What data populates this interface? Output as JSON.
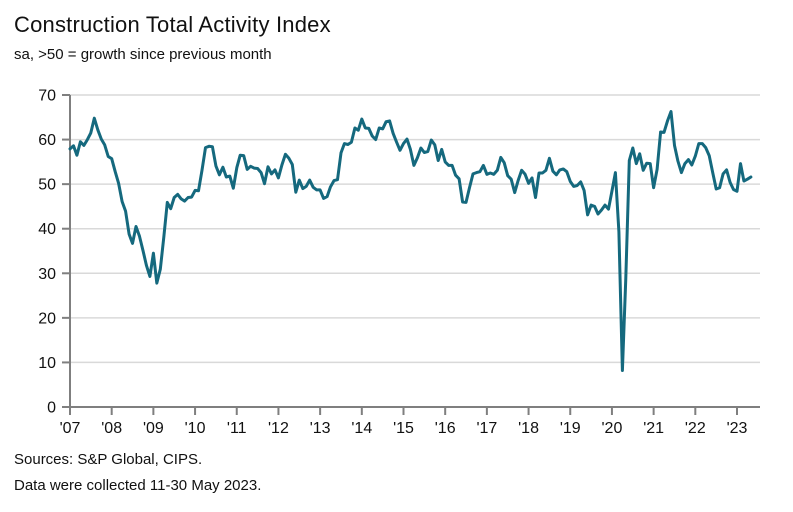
{
  "header": {
    "title": "Construction Total Activity Index",
    "subtitle": "sa, >50 = growth since previous month"
  },
  "footer": {
    "sources": "Sources: S&P Global, CIPS.",
    "note": "Data were collected 11-30 May 2023."
  },
  "colors": {
    "line": "#15697e",
    "axis": "#7f7f7f",
    "gridline": "#d9d9d9",
    "text": "#111111",
    "background": "#ffffff"
  },
  "chart_data": {
    "type": "line",
    "title": "Construction Total Activity Index",
    "subtitle": "sa, >50 = growth since previous month",
    "xlabel": "",
    "ylabel": "",
    "ylim": [
      0,
      70
    ],
    "yticks": [
      0,
      10,
      20,
      30,
      40,
      50,
      60,
      70
    ],
    "grid": "horizontal",
    "legend": "none",
    "x_frequency": "monthly",
    "x_start": "2007-01",
    "x_end": "2023-05",
    "x_tick_labels": [
      "'07",
      "'08",
      "'09",
      "'10",
      "'11",
      "'12",
      "'13",
      "'14",
      "'15",
      "'16",
      "'17",
      "'18",
      "'19",
      "'20",
      "'21",
      "'22",
      "'23"
    ],
    "series": [
      {
        "name": "Construction Total Activity Index",
        "values": [
          57.9,
          58.6,
          56.5,
          59.5,
          58.7,
          60.0,
          61.5,
          64.8,
          62.2,
          60.1,
          58.8,
          56.2,
          55.7,
          52.8,
          50.2,
          46.1,
          43.9,
          38.8,
          36.7,
          40.5,
          38.3,
          35.1,
          31.8,
          29.3,
          34.5,
          27.8,
          30.9,
          38.1,
          45.9,
          44.5,
          47.0,
          47.7,
          46.7,
          46.2,
          47.0,
          47.1,
          48.6,
          48.5,
          53.1,
          58.2,
          58.5,
          58.4,
          54.1,
          52.1,
          53.8,
          51.6,
          51.8,
          49.1,
          53.7,
          56.5,
          56.4,
          53.3,
          54.0,
          53.6,
          53.5,
          52.6,
          50.1,
          53.9,
          52.3,
          53.2,
          51.4,
          54.3,
          56.7,
          55.8,
          54.4,
          48.2,
          50.9,
          49.0,
          49.5,
          50.9,
          49.3,
          48.7,
          48.7,
          46.8,
          47.2,
          49.4,
          50.8,
          51.0,
          57.0,
          59.1,
          58.9,
          59.4,
          62.6,
          62.1,
          64.6,
          62.6,
          62.5,
          60.8,
          60.0,
          62.6,
          62.4,
          64.0,
          64.2,
          61.4,
          59.4,
          57.6,
          59.1,
          60.1,
          57.8,
          54.2,
          55.9,
          58.1,
          57.1,
          57.3,
          59.9,
          58.8,
          55.3,
          57.8,
          55.0,
          54.2,
          54.2,
          52.0,
          51.2,
          46.0,
          45.9,
          49.2,
          52.3,
          52.6,
          52.8,
          54.2,
          52.2,
          52.5,
          52.2,
          53.1,
          56.0,
          54.8,
          51.9,
          51.1,
          48.1,
          50.8,
          53.1,
          52.2,
          50.2,
          51.4,
          47.0,
          52.5,
          52.5,
          53.1,
          55.8,
          52.9,
          52.1,
          53.2,
          53.4,
          52.8,
          50.6,
          49.5,
          49.7,
          50.5,
          48.6,
          43.1,
          45.3,
          45.0,
          43.3,
          44.2,
          45.3,
          44.4,
          48.4,
          52.6,
          39.3,
          8.2,
          28.9,
          55.3,
          58.1,
          54.6,
          56.8,
          53.1,
          54.7,
          54.6,
          49.2,
          53.3,
          61.7,
          61.6,
          64.2,
          66.3,
          58.7,
          55.2,
          52.6,
          54.6,
          55.5,
          54.3,
          56.3,
          59.1,
          59.1,
          58.2,
          56.4,
          52.6,
          48.9,
          49.2,
          52.3,
          53.2,
          50.4,
          48.8,
          48.4,
          54.6,
          50.7,
          51.1,
          51.6
        ]
      }
    ]
  }
}
